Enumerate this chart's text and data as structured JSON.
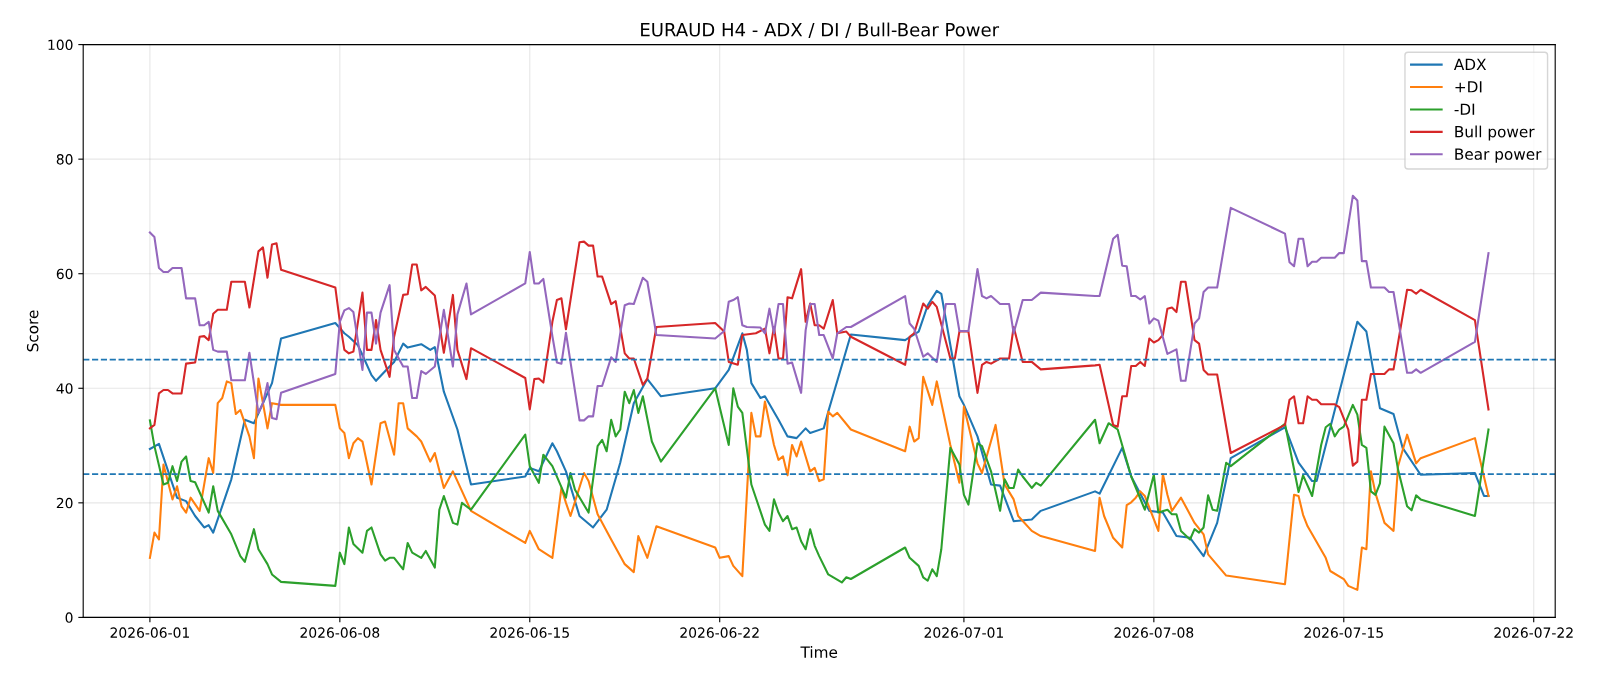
{
  "chart_data": {
    "type": "line",
    "title": "EURAUD H4 - ADX / DI / Bull-Bear Power",
    "xlabel": "Time",
    "ylabel": "Score",
    "xlim": [
      "2026-05-29T13:00",
      "2026-07-22T19:00"
    ],
    "xticks": [
      "2026-06-01",
      "2026-06-08",
      "2026-06-15",
      "2026-06-22",
      "2026-07-01",
      "2026-07-08",
      "2026-07-15",
      "2026-07-22"
    ],
    "ylim": [
      0,
      100
    ],
    "yticks": [
      0,
      20,
      40,
      60,
      80,
      100
    ],
    "grid": true,
    "legend": "top right",
    "line_style": "solid",
    "ref_lines": [
      {
        "axis": "y",
        "value": 45,
        "color": "#1f77b4",
        "line_style": "dashed"
      },
      {
        "axis": "y",
        "value": 25,
        "color": "#1f77b4",
        "line_style": "dashed"
      }
    ],
    "series": [
      {
        "name": "ADX",
        "color": "#1f77b4",
        "x": [
          "2026-06-01T00:00",
          "2026-06-01T08:00",
          "2026-06-02T00:00",
          "2026-06-02T08:00",
          "2026-06-02T16:00",
          "2026-06-03T00:00",
          "2026-06-03T04:00",
          "2026-06-03T08:00",
          "2026-06-04T00:00",
          "2026-06-04T12:00",
          "2026-06-04T20:00",
          "2026-06-05T12:00",
          "2026-06-05T20:00",
          "2026-06-07T20:00",
          "2026-06-08T04:00",
          "2026-06-08T08:00",
          "2026-06-08T16:00",
          "2026-06-08T20:00",
          "2026-06-09T04:00",
          "2026-06-09T08:00",
          "2026-06-09T20:00",
          "2026-06-10T00:00",
          "2026-06-10T08:00",
          "2026-06-10T12:00",
          "2026-06-11T00:00",
          "2026-06-11T08:00",
          "2026-06-11T12:00",
          "2026-06-11T20:00",
          "2026-06-12T08:00",
          "2026-06-12T20:00",
          "2026-06-14T20:00",
          "2026-06-15T00:00",
          "2026-06-15T08:00",
          "2026-06-15T20:00",
          "2026-06-16T00:00",
          "2026-06-16T08:00",
          "2026-06-16T20:00",
          "2026-06-17T08:00",
          "2026-06-17T20:00",
          "2026-06-18T08:00",
          "2026-06-18T20:00",
          "2026-06-19T08:00",
          "2026-06-19T20:00",
          "2026-06-21T20:00",
          "2026-06-22T08:00",
          "2026-06-22T20:00",
          "2026-06-23T00:00",
          "2026-06-23T04:00",
          "2026-06-23T12:00",
          "2026-06-23T16:00",
          "2026-06-24T04:00",
          "2026-06-24T12:00",
          "2026-06-24T20:00",
          "2026-06-25T04:00",
          "2026-06-25T08:00",
          "2026-06-25T20:00",
          "2026-06-26T00:00",
          "2026-06-26T20:00",
          "2026-06-28T20:00",
          "2026-06-29T08:00",
          "2026-06-29T16:00",
          "2026-06-30T00:00",
          "2026-06-30T04:00",
          "2026-06-30T20:00",
          "2026-07-01T00:00",
          "2026-07-01T12:00",
          "2026-07-02T00:00",
          "2026-07-02T08:00",
          "2026-07-02T20:00",
          "2026-07-03T12:00",
          "2026-07-03T20:00",
          "2026-07-05T20:00",
          "2026-07-06T00:00",
          "2026-07-06T20:00",
          "2026-07-07T04:00",
          "2026-07-07T20:00",
          "2026-07-08T08:00",
          "2026-07-08T20:00",
          "2026-07-09T08:00",
          "2026-07-09T20:00",
          "2026-07-10T08:00",
          "2026-07-10T20:00",
          "2026-07-12T20:00",
          "2026-07-13T08:00",
          "2026-07-13T20:00",
          "2026-07-14T00:00",
          "2026-07-15T12:00",
          "2026-07-15T20:00",
          "2026-07-16T08:00",
          "2026-07-16T20:00",
          "2026-07-17T04:00",
          "2026-07-17T20:00",
          "2026-07-19T20:00",
          "2026-07-20T04:00",
          "2026-07-20T08:00"
        ],
        "values": [
          29.4,
          30.3,
          20.9,
          20.3,
          17.7,
          15.7,
          16.1,
          14.8,
          24.1,
          34.5,
          33.9,
          40.9,
          48.7,
          51.4,
          49.6,
          49.0,
          47.5,
          45.8,
          42.3,
          41.3,
          43.8,
          44.6,
          47.8,
          47.1,
          47.7,
          46.7,
          47.2,
          39.4,
          32.8,
          23.2,
          24.6,
          26.1,
          25.5,
          30.4,
          29.0,
          25.5,
          17.7,
          15.7,
          18.8,
          27.0,
          37.4,
          41.6,
          38.6,
          40.0,
          43.2,
          49.6,
          46.7,
          40.9,
          38.3,
          38.6,
          34.5,
          31.6,
          31.3,
          33.0,
          32.2,
          33.0,
          35.9,
          49.4,
          48.4,
          49.9,
          54.5,
          57.0,
          56.5,
          38.6,
          37.1,
          31.6,
          23.2,
          23.0,
          16.8,
          17.1,
          18.6,
          22.0,
          21.6,
          29.6,
          24.6,
          18.6,
          18.3,
          14.2,
          13.9,
          10.7,
          16.5,
          27.8,
          33.2,
          27.0,
          23.8,
          23.8,
          51.6,
          49.9,
          36.5,
          35.5,
          29.6,
          24.9,
          25.2,
          21.2,
          21.2
        ]
      },
      {
        "name": "+DI",
        "color": "#ff7f0e",
        "x": [
          "2026-06-01T00:00",
          "2026-06-01T04:00",
          "2026-06-01T08:00",
          "2026-06-01T12:00",
          "2026-06-01T20:00",
          "2026-06-02T00:00",
          "2026-06-02T04:00",
          "2026-06-02T08:00",
          "2026-06-02T12:00",
          "2026-06-02T20:00",
          "2026-06-03T04:00",
          "2026-06-03T08:00",
          "2026-06-03T12:00",
          "2026-06-03T16:00",
          "2026-06-03T20:00",
          "2026-06-04T00:00",
          "2026-06-04T04:00",
          "2026-06-04T08:00",
          "2026-06-04T16:00",
          "2026-06-04T20:00",
          "2026-06-05T00:00",
          "2026-06-05T04:00",
          "2026-06-05T08:00",
          "2026-06-05T12:00",
          "2026-06-05T20:00",
          "2026-06-07T20:00",
          "2026-06-08T00:00",
          "2026-06-08T04:00",
          "2026-06-08T08:00",
          "2026-06-08T12:00",
          "2026-06-08T16:00",
          "2026-06-08T20:00",
          "2026-06-09T04:00",
          "2026-06-09T12:00",
          "2026-06-09T16:00",
          "2026-06-10T00:00",
          "2026-06-10T04:00",
          "2026-06-10T08:00",
          "2026-06-10T12:00",
          "2026-06-10T20:00",
          "2026-06-11T00:00",
          "2026-06-11T08:00",
          "2026-06-11T12:00",
          "2026-06-11T20:00",
          "2026-06-12T04:00",
          "2026-06-12T08:00",
          "2026-06-12T20:00",
          "2026-06-14T20:00",
          "2026-06-15T00:00",
          "2026-06-15T08:00",
          "2026-06-15T20:00",
          "2026-06-16T04:00",
          "2026-06-16T08:00",
          "2026-06-16T12:00",
          "2026-06-17T00:00",
          "2026-06-17T04:00",
          "2026-06-17T12:00",
          "2026-06-18T00:00",
          "2026-06-18T12:00",
          "2026-06-18T20:00",
          "2026-06-19T00:00",
          "2026-06-19T08:00",
          "2026-06-19T16:00",
          "2026-06-21T20:00",
          "2026-06-22T00:00",
          "2026-06-22T08:00",
          "2026-06-22T12:00",
          "2026-06-22T20:00",
          "2026-06-23T04:00",
          "2026-06-23T08:00",
          "2026-06-23T12:00",
          "2026-06-23T16:00",
          "2026-06-24T00:00",
          "2026-06-24T04:00",
          "2026-06-24T08:00",
          "2026-06-24T12:00",
          "2026-06-24T16:00",
          "2026-06-24T20:00",
          "2026-06-25T00:00",
          "2026-06-25T08:00",
          "2026-06-25T12:00",
          "2026-06-25T16:00",
          "2026-06-25T20:00",
          "2026-06-26T00:00",
          "2026-06-26T04:00",
          "2026-06-26T08:00",
          "2026-06-26T20:00",
          "2026-06-28T20:00",
          "2026-06-29T00:00",
          "2026-06-29T04:00",
          "2026-06-29T08:00",
          "2026-06-29T12:00",
          "2026-06-29T20:00",
          "2026-06-30T00:00",
          "2026-06-30T12:00",
          "2026-06-30T20:00",
          "2026-07-01T00:00",
          "2026-07-01T12:00",
          "2026-07-01T16:00",
          "2026-07-02T04:00",
          "2026-07-02T12:00",
          "2026-07-02T20:00",
          "2026-07-03T00:00",
          "2026-07-03T12:00",
          "2026-07-03T20:00",
          "2026-07-05T20:00",
          "2026-07-06T00:00",
          "2026-07-06T04:00",
          "2026-07-06T12:00",
          "2026-07-06T20:00",
          "2026-07-07T00:00",
          "2026-07-07T04:00",
          "2026-07-07T08:00",
          "2026-07-07T12:00",
          "2026-07-07T16:00",
          "2026-07-08T04:00",
          "2026-07-08T08:00",
          "2026-07-08T12:00",
          "2026-07-08T16:00",
          "2026-07-09T00:00",
          "2026-07-09T12:00",
          "2026-07-09T20:00",
          "2026-07-10T00:00",
          "2026-07-10T16:00",
          "2026-07-12T20:00",
          "2026-07-13T04:00",
          "2026-07-13T08:00",
          "2026-07-13T12:00",
          "2026-07-13T16:00",
          "2026-07-14T08:00",
          "2026-07-14T12:00",
          "2026-07-15T00:00",
          "2026-07-15T04:00",
          "2026-07-15T12:00",
          "2026-07-15T16:00",
          "2026-07-15T20:00",
          "2026-07-16T00:00",
          "2026-07-16T04:00",
          "2026-07-16T12:00",
          "2026-07-16T20:00",
          "2026-07-17T00:00",
          "2026-07-17T08:00",
          "2026-07-17T16:00",
          "2026-07-17T20:00",
          "2026-07-19T20:00",
          "2026-07-20T08:00"
        ],
        "values": [
          10.4,
          14.8,
          13.6,
          26.7,
          20.6,
          22.9,
          19.4,
          18.3,
          20.9,
          18.6,
          27.8,
          25.2,
          37.4,
          38.3,
          41.2,
          40.9,
          35.5,
          36.2,
          31.6,
          27.8,
          41.7,
          37.4,
          33.0,
          37.4,
          37.1,
          37.1,
          33.0,
          32.2,
          27.8,
          30.4,
          31.3,
          30.7,
          23.2,
          33.9,
          34.2,
          28.4,
          37.4,
          37.4,
          33.0,
          31.6,
          30.7,
          27.2,
          28.7,
          22.6,
          25.5,
          23.8,
          18.6,
          13.0,
          15.1,
          11.9,
          10.4,
          22.6,
          20.0,
          17.7,
          25.2,
          23.8,
          18.0,
          13.6,
          9.3,
          7.9,
          14.2,
          10.4,
          15.9,
          12.2,
          10.4,
          10.7,
          9.0,
          7.2,
          35.7,
          31.6,
          31.6,
          37.7,
          30.1,
          27.5,
          28.1,
          24.8,
          30.1,
          28.1,
          30.7,
          25.5,
          26.1,
          23.8,
          24.1,
          35.9,
          35.1,
          35.7,
          32.8,
          29.0,
          33.3,
          30.7,
          31.3,
          42.0,
          37.1,
          41.2,
          30.1,
          23.5,
          36.8,
          26.9,
          25.2,
          33.6,
          23.2,
          20.6,
          17.7,
          15.1,
          14.2,
          11.6,
          20.9,
          17.7,
          13.9,
          12.2,
          19.6,
          20.1,
          20.9,
          22.0,
          21.2,
          15.1,
          25.0,
          21.4,
          18.6,
          20.9,
          16.5,
          14.5,
          11.0,
          7.3,
          5.8,
          21.4,
          21.2,
          17.9,
          15.9,
          10.4,
          8.1,
          6.7,
          5.5,
          4.8,
          12.2,
          11.9,
          25.5,
          21.7,
          16.5,
          15.1,
          26.4,
          31.9,
          26.9,
          27.8,
          31.3,
          21.2
        ]
      },
      {
        "name": "-DI",
        "color": "#2ca02c",
        "x": [
          "2026-06-01T00:00",
          "2026-06-01T04:00",
          "2026-06-01T12:00",
          "2026-06-01T16:00",
          "2026-06-01T20:00",
          "2026-06-02T00:00",
          "2026-06-02T04:00",
          "2026-06-02T08:00",
          "2026-06-02T12:00",
          "2026-06-02T16:00",
          "2026-06-03T04:00",
          "2026-06-03T08:00",
          "2026-06-03T12:00",
          "2026-06-04T00:00",
          "2026-06-04T08:00",
          "2026-06-04T12:00",
          "2026-06-04T20:00",
          "2026-06-05T00:00",
          "2026-06-05T08:00",
          "2026-06-05T12:00",
          "2026-06-05T20:00",
          "2026-06-07T20:00",
          "2026-06-08T00:00",
          "2026-06-08T04:00",
          "2026-06-08T08:00",
          "2026-06-08T12:00",
          "2026-06-08T20:00",
          "2026-06-09T00:00",
          "2026-06-09T04:00",
          "2026-06-09T12:00",
          "2026-06-09T16:00",
          "2026-06-09T20:00",
          "2026-06-10T00:00",
          "2026-06-10T08:00",
          "2026-06-10T12:00",
          "2026-06-10T16:00",
          "2026-06-11T00:00",
          "2026-06-11T04:00",
          "2026-06-11T12:00",
          "2026-06-11T16:00",
          "2026-06-11T20:00",
          "2026-06-12T04:00",
          "2026-06-12T08:00",
          "2026-06-12T12:00",
          "2026-06-12T20:00",
          "2026-06-14T20:00",
          "2026-06-15T00:00",
          "2026-06-15T08:00",
          "2026-06-15T12:00",
          "2026-06-15T20:00",
          "2026-06-16T08:00",
          "2026-06-16T12:00",
          "2026-06-16T16:00",
          "2026-06-17T04:00",
          "2026-06-17T12:00",
          "2026-06-17T16:00",
          "2026-06-17T20:00",
          "2026-06-18T00:00",
          "2026-06-18T04:00",
          "2026-06-18T08:00",
          "2026-06-18T12:00",
          "2026-06-18T16:00",
          "2026-06-18T20:00",
          "2026-06-19T00:00",
          "2026-06-19T04:00",
          "2026-06-19T12:00",
          "2026-06-19T20:00",
          "2026-06-21T20:00",
          "2026-06-22T08:00",
          "2026-06-22T12:00",
          "2026-06-22T16:00",
          "2026-06-22T20:00",
          "2026-06-23T04:00",
          "2026-06-23T16:00",
          "2026-06-23T20:00",
          "2026-06-24T00:00",
          "2026-06-24T04:00",
          "2026-06-24T08:00",
          "2026-06-24T12:00",
          "2026-06-24T16:00",
          "2026-06-24T20:00",
          "2026-06-25T00:00",
          "2026-06-25T04:00",
          "2026-06-25T08:00",
          "2026-06-25T12:00",
          "2026-06-25T16:00",
          "2026-06-26T00:00",
          "2026-06-26T12:00",
          "2026-06-26T16:00",
          "2026-06-26T20:00",
          "2026-06-28T20:00",
          "2026-06-29T00:00",
          "2026-06-29T08:00",
          "2026-06-29T12:00",
          "2026-06-29T16:00",
          "2026-06-29T20:00",
          "2026-06-30T00:00",
          "2026-06-30T04:00",
          "2026-06-30T12:00",
          "2026-06-30T20:00",
          "2026-07-01T00:00",
          "2026-07-01T04:00",
          "2026-07-01T12:00",
          "2026-07-01T16:00",
          "2026-07-02T00:00",
          "2026-07-02T08:00",
          "2026-07-02T12:00",
          "2026-07-02T16:00",
          "2026-07-02T20:00",
          "2026-07-03T00:00",
          "2026-07-03T04:00",
          "2026-07-03T12:00",
          "2026-07-03T16:00",
          "2026-07-03T20:00",
          "2026-07-05T20:00",
          "2026-07-06T00:00",
          "2026-07-06T08:00",
          "2026-07-06T16:00",
          "2026-07-07T04:00",
          "2026-07-07T16:00",
          "2026-07-08T00:00",
          "2026-07-08T04:00",
          "2026-07-08T12:00",
          "2026-07-08T16:00",
          "2026-07-08T20:00",
          "2026-07-09T00:00",
          "2026-07-09T08:00",
          "2026-07-09T12:00",
          "2026-07-09T16:00",
          "2026-07-09T20:00",
          "2026-07-10T00:00",
          "2026-07-10T04:00",
          "2026-07-10T08:00",
          "2026-07-10T16:00",
          "2026-07-10T20:00",
          "2026-07-12T20:00",
          "2026-07-13T08:00",
          "2026-07-13T12:00",
          "2026-07-13T20:00",
          "2026-07-14T04:00",
          "2026-07-14T08:00",
          "2026-07-14T12:00",
          "2026-07-14T16:00",
          "2026-07-14T20:00",
          "2026-07-15T00:00",
          "2026-07-15T08:00",
          "2026-07-15T12:00",
          "2026-07-15T16:00",
          "2026-07-15T20:00",
          "2026-07-16T00:00",
          "2026-07-16T04:00",
          "2026-07-16T08:00",
          "2026-07-16T12:00",
          "2026-07-16T20:00",
          "2026-07-17T00:00",
          "2026-07-17T08:00",
          "2026-07-17T12:00",
          "2026-07-17T16:00",
          "2026-07-17T20:00",
          "2026-07-19T20:00",
          "2026-07-20T08:00"
        ],
        "values": [
          34.4,
          29.9,
          23.2,
          23.5,
          26.4,
          23.8,
          27.2,
          28.1,
          23.8,
          23.6,
          18.3,
          22.9,
          18.6,
          14.5,
          10.7,
          9.7,
          15.4,
          11.9,
          9.3,
          7.5,
          6.2,
          5.5,
          11.3,
          9.3,
          15.7,
          12.8,
          11.3,
          15.1,
          15.7,
          11.0,
          9.9,
          10.4,
          10.4,
          8.4,
          13.0,
          11.3,
          10.4,
          11.6,
          8.7,
          18.8,
          21.2,
          16.5,
          16.2,
          20.0,
          18.8,
          31.9,
          26.4,
          23.5,
          28.4,
          26.4,
          20.9,
          25.2,
          22.3,
          18.3,
          29.9,
          31.0,
          29.0,
          34.5,
          31.6,
          32.8,
          39.4,
          37.4,
          39.7,
          35.7,
          38.6,
          30.7,
          27.2,
          40.0,
          30.1,
          40.0,
          36.8,
          35.7,
          23.2,
          16.2,
          15.1,
          20.6,
          18.3,
          16.8,
          17.7,
          15.4,
          15.7,
          13.3,
          11.9,
          15.4,
          12.5,
          10.7,
          7.5,
          6.1,
          7.0,
          6.7,
          12.2,
          10.4,
          9.0,
          7.0,
          6.4,
          8.4,
          7.2,
          11.9,
          29.6,
          26.7,
          21.4,
          19.7,
          30.4,
          29.9,
          25.5,
          18.6,
          24.1,
          22.6,
          22.6,
          25.8,
          24.6,
          22.6,
          23.5,
          23.0,
          34.5,
          30.4,
          33.9,
          32.8,
          24.6,
          18.8,
          24.9,
          18.3,
          18.8,
          18.0,
          18.0,
          15.1,
          13.6,
          15.4,
          14.8,
          15.7,
          21.3,
          18.8,
          18.6,
          27.0,
          26.4,
          33.8,
          21.9,
          24.8,
          21.2,
          30.1,
          33.2,
          33.8,
          31.6,
          32.8,
          33.3,
          37.1,
          35.4,
          30.1,
          29.6,
          22.0,
          21.4,
          23.4,
          33.3,
          30.4,
          25.8,
          19.4,
          18.7,
          21.3,
          20.6,
          17.7,
          32.8
        ]
      },
      {
        "name": "Bull power",
        "color": "#d62728",
        "x": [
          "2026-06-01T00:00",
          "2026-06-01T04:00",
          "2026-06-01T08:00",
          "2026-06-01T12:00",
          "2026-06-01T16:00",
          "2026-06-01T20:00",
          "2026-06-02T04:00",
          "2026-06-02T08:00",
          "2026-06-02T16:00",
          "2026-06-02T20:00",
          "2026-06-03T00:00",
          "2026-06-03T04:00",
          "2026-06-03T08:00",
          "2026-06-03T12:00",
          "2026-06-03T20:00",
          "2026-06-04T00:00",
          "2026-06-04T12:00",
          "2026-06-04T16:00",
          "2026-06-05T00:00",
          "2026-06-05T04:00",
          "2026-06-05T08:00",
          "2026-06-05T12:00",
          "2026-06-05T16:00",
          "2026-06-05T20:00",
          "2026-06-07T20:00",
          "2026-06-08T00:00",
          "2026-06-08T04:00",
          "2026-06-08T08:00",
          "2026-06-08T12:00",
          "2026-06-08T20:00",
          "2026-06-09T00:00",
          "2026-06-09T04:00",
          "2026-06-09T08:00",
          "2026-06-09T12:00",
          "2026-06-09T20:00",
          "2026-06-10T00:00",
          "2026-06-10T08:00",
          "2026-06-10T12:00",
          "2026-06-10T16:00",
          "2026-06-10T20:00",
          "2026-06-11T00:00",
          "2026-06-11T04:00",
          "2026-06-11T12:00",
          "2026-06-11T20:00",
          "2026-06-12T04:00",
          "2026-06-12T08:00",
          "2026-06-12T16:00",
          "2026-06-12T20:00",
          "2026-06-14T20:00",
          "2026-06-15T00:00",
          "2026-06-15T04:00",
          "2026-06-15T08:00",
          "2026-06-15T12:00",
          "2026-06-15T20:00",
          "2026-06-16T00:00",
          "2026-06-16T04:00",
          "2026-06-16T08:00",
          "2026-06-16T20:00",
          "2026-06-17T00:00",
          "2026-06-17T04:00",
          "2026-06-17T08:00",
          "2026-06-17T12:00",
          "2026-06-17T16:00",
          "2026-06-18T00:00",
          "2026-06-18T04:00",
          "2026-06-18T12:00",
          "2026-06-18T16:00",
          "2026-06-18T20:00",
          "2026-06-19T04:00",
          "2026-06-19T08:00",
          "2026-06-19T16:00",
          "2026-06-21T20:00",
          "2026-06-22T04:00",
          "2026-06-22T08:00",
          "2026-06-22T16:00",
          "2026-06-22T20:00",
          "2026-06-23T08:00",
          "2026-06-23T16:00",
          "2026-06-23T20:00",
          "2026-06-24T00:00",
          "2026-06-24T04:00",
          "2026-06-24T08:00",
          "2026-06-24T12:00",
          "2026-06-24T16:00",
          "2026-06-25T00:00",
          "2026-06-25T04:00",
          "2026-06-25T08:00",
          "2026-06-25T12:00",
          "2026-06-25T16:00",
          "2026-06-25T20:00",
          "2026-06-26T04:00",
          "2026-06-26T08:00",
          "2026-06-26T16:00",
          "2026-06-26T20:00",
          "2026-06-28T20:00",
          "2026-06-29T00:00",
          "2026-06-29T04:00",
          "2026-06-29T12:00",
          "2026-06-29T16:00",
          "2026-06-29T20:00",
          "2026-06-30T00:00",
          "2026-06-30T12:00",
          "2026-06-30T16:00",
          "2026-06-30T20:00",
          "2026-07-01T04:00",
          "2026-07-01T12:00",
          "2026-07-01T16:00",
          "2026-07-01T20:00",
          "2026-07-02T00:00",
          "2026-07-02T08:00",
          "2026-07-02T16:00",
          "2026-07-02T20:00",
          "2026-07-03T04:00",
          "2026-07-03T12:00",
          "2026-07-03T20:00",
          "2026-07-05T20:00",
          "2026-07-06T00:00",
          "2026-07-06T12:00",
          "2026-07-06T16:00",
          "2026-07-06T20:00",
          "2026-07-07T00:00",
          "2026-07-07T04:00",
          "2026-07-07T08:00",
          "2026-07-07T12:00",
          "2026-07-07T16:00",
          "2026-07-07T20:00",
          "2026-07-08T00:00",
          "2026-07-08T04:00",
          "2026-07-08T08:00",
          "2026-07-08T12:00",
          "2026-07-08T16:00",
          "2026-07-08T20:00",
          "2026-07-09T00:00",
          "2026-07-09T04:00",
          "2026-07-09T12:00",
          "2026-07-09T16:00",
          "2026-07-09T20:00",
          "2026-07-10T00:00",
          "2026-07-10T08:00",
          "2026-07-10T20:00",
          "2026-07-12T20:00",
          "2026-07-13T00:00",
          "2026-07-13T04:00",
          "2026-07-13T08:00",
          "2026-07-13T12:00",
          "2026-07-13T16:00",
          "2026-07-13T20:00",
          "2026-07-14T00:00",
          "2026-07-14T04:00",
          "2026-07-14T16:00",
          "2026-07-14T20:00",
          "2026-07-15T04:00",
          "2026-07-15T08:00",
          "2026-07-15T12:00",
          "2026-07-15T16:00",
          "2026-07-15T20:00",
          "2026-07-16T00:00",
          "2026-07-16T12:00",
          "2026-07-16T16:00",
          "2026-07-16T20:00",
          "2026-07-17T08:00",
          "2026-07-17T12:00",
          "2026-07-17T16:00",
          "2026-07-17T20:00",
          "2026-07-19T20:00",
          "2026-07-20T08:00"
        ],
        "values": [
          33.0,
          33.6,
          39.1,
          39.7,
          39.7,
          39.1,
          39.1,
          44.3,
          44.5,
          49.0,
          49.1,
          48.4,
          53.0,
          53.7,
          53.7,
          58.6,
          58.6,
          54.1,
          63.9,
          64.6,
          59.3,
          65.1,
          65.3,
          60.7,
          57.6,
          51.6,
          46.7,
          46.1,
          46.4,
          56.7,
          46.7,
          46.7,
          51.9,
          46.7,
          42.0,
          49.0,
          56.3,
          56.4,
          61.6,
          61.6,
          57.1,
          57.7,
          56.2,
          46.2,
          56.3,
          46.7,
          41.6,
          47.0,
          41.8,
          36.3,
          41.6,
          41.7,
          41.0,
          51.6,
          55.4,
          55.7,
          50.3,
          65.5,
          65.6,
          64.9,
          64.9,
          59.5,
          59.5,
          54.7,
          55.2,
          46.1,
          45.2,
          45.2,
          40.6,
          41.7,
          50.7,
          51.4,
          49.9,
          44.6,
          44.1,
          49.3,
          49.6,
          50.4,
          46.1,
          50.7,
          45.2,
          45.2,
          55.9,
          55.7,
          60.8,
          51.6,
          54.8,
          51.0,
          51.0,
          50.4,
          55.4,
          49.6,
          49.9,
          49.0,
          44.1,
          49.0,
          49.6,
          54.8,
          53.9,
          55.1,
          54.2,
          45.2,
          45.2,
          49.9,
          49.9,
          39.2,
          44.1,
          44.6,
          44.3,
          45.2,
          45.2,
          50.7,
          44.6,
          44.6,
          43.3,
          44.0,
          44.1,
          33.6,
          33.3,
          38.6,
          38.6,
          43.9,
          43.9,
          44.6,
          43.9,
          48.7,
          48.0,
          48.4,
          49.3,
          53.9,
          54.1,
          53.3,
          58.6,
          58.6,
          48.4,
          47.8,
          43.2,
          42.4,
          42.4,
          28.7,
          33.6,
          38.0,
          38.6,
          33.9,
          33.9,
          38.6,
          38.0,
          38.0,
          37.2,
          37.2,
          36.7,
          32.8,
          26.5,
          27.2,
          38.0,
          38.0,
          42.5,
          42.5,
          43.3,
          43.3,
          57.2,
          57.1,
          56.5,
          57.2,
          51.9,
          36.3
        ]
      },
      {
        "name": "Bear power",
        "color": "#9467bd",
        "x": [
          "2026-06-01T00:00",
          "2026-06-01T04:00",
          "2026-06-01T08:00",
          "2026-06-01T12:00",
          "2026-06-01T16:00",
          "2026-06-01T20:00",
          "2026-06-02T04:00",
          "2026-06-02T08:00",
          "2026-06-02T16:00",
          "2026-06-02T20:00",
          "2026-06-03T00:00",
          "2026-06-03T04:00",
          "2026-06-03T08:00",
          "2026-06-03T12:00",
          "2026-06-03T20:00",
          "2026-06-04T00:00",
          "2026-06-04T12:00",
          "2026-06-04T16:00",
          "2026-06-05T00:00",
          "2026-06-05T04:00",
          "2026-06-05T08:00",
          "2026-06-05T12:00",
          "2026-06-05T16:00",
          "2026-06-05T20:00",
          "2026-06-07T20:00",
          "2026-06-08T00:00",
          "2026-06-08T04:00",
          "2026-06-08T08:00",
          "2026-06-08T12:00",
          "2026-06-08T20:00",
          "2026-06-09T00:00",
          "2026-06-09T04:00",
          "2026-06-09T08:00",
          "2026-06-09T12:00",
          "2026-06-09T20:00",
          "2026-06-10T00:00",
          "2026-06-10T08:00",
          "2026-06-10T12:00",
          "2026-06-10T16:00",
          "2026-06-10T20:00",
          "2026-06-11T00:00",
          "2026-06-11T04:00",
          "2026-06-11T12:00",
          "2026-06-11T20:00",
          "2026-06-12T04:00",
          "2026-06-12T08:00",
          "2026-06-12T16:00",
          "2026-06-12T20:00",
          "2026-06-14T20:00",
          "2026-06-15T00:00",
          "2026-06-15T04:00",
          "2026-06-15T08:00",
          "2026-06-15T12:00",
          "2026-06-15T20:00",
          "2026-06-16T00:00",
          "2026-06-16T04:00",
          "2026-06-16T08:00",
          "2026-06-16T20:00",
          "2026-06-17T00:00",
          "2026-06-17T04:00",
          "2026-06-17T08:00",
          "2026-06-17T12:00",
          "2026-06-17T16:00",
          "2026-06-18T00:00",
          "2026-06-18T04:00",
          "2026-06-18T12:00",
          "2026-06-18T16:00",
          "2026-06-18T20:00",
          "2026-06-19T04:00",
          "2026-06-19T08:00",
          "2026-06-19T16:00",
          "2026-06-21T20:00",
          "2026-06-22T04:00",
          "2026-06-22T08:00",
          "2026-06-22T12:00",
          "2026-06-22T16:00",
          "2026-06-22T20:00",
          "2026-06-23T00:00",
          "2026-06-23T12:00",
          "2026-06-23T16:00",
          "2026-06-23T20:00",
          "2026-06-24T00:00",
          "2026-06-24T04:00",
          "2026-06-24T08:00",
          "2026-06-24T12:00",
          "2026-06-24T16:00",
          "2026-06-25T00:00",
          "2026-06-25T04:00",
          "2026-06-25T08:00",
          "2026-06-25T12:00",
          "2026-06-25T16:00",
          "2026-06-25T20:00",
          "2026-06-26T04:00",
          "2026-06-26T08:00",
          "2026-06-26T16:00",
          "2026-06-26T20:00",
          "2026-06-28T20:00",
          "2026-06-29T00:00",
          "2026-06-29T04:00",
          "2026-06-29T12:00",
          "2026-06-29T16:00",
          "2026-06-30T00:00",
          "2026-06-30T08:00",
          "2026-06-30T16:00",
          "2026-06-30T20:00",
          "2026-07-01T04:00",
          "2026-07-01T12:00",
          "2026-07-01T16:00",
          "2026-07-01T20:00",
          "2026-07-02T00:00",
          "2026-07-02T08:00",
          "2026-07-02T16:00",
          "2026-07-02T20:00",
          "2026-07-03T04:00",
          "2026-07-03T12:00",
          "2026-07-03T20:00",
          "2026-07-05T20:00",
          "2026-07-06T00:00",
          "2026-07-06T12:00",
          "2026-07-06T16:00",
          "2026-07-06T20:00",
          "2026-07-07T00:00",
          "2026-07-07T04:00",
          "2026-07-07T08:00",
          "2026-07-07T12:00",
          "2026-07-07T16:00",
          "2026-07-07T20:00",
          "2026-07-08T00:00",
          "2026-07-08T04:00",
          "2026-07-08T12:00",
          "2026-07-08T20:00",
          "2026-07-09T00:00",
          "2026-07-09T04:00",
          "2026-07-09T12:00",
          "2026-07-09T16:00",
          "2026-07-09T20:00",
          "2026-07-10T00:00",
          "2026-07-10T08:00",
          "2026-07-10T20:00",
          "2026-07-12T20:00",
          "2026-07-13T00:00",
          "2026-07-13T04:00",
          "2026-07-13T08:00",
          "2026-07-13T12:00",
          "2026-07-13T16:00",
          "2026-07-13T20:00",
          "2026-07-14T00:00",
          "2026-07-14T04:00",
          "2026-07-14T16:00",
          "2026-07-14T20:00",
          "2026-07-15T00:00",
          "2026-07-15T08:00",
          "2026-07-15T12:00",
          "2026-07-15T16:00",
          "2026-07-15T20:00",
          "2026-07-16T00:00",
          "2026-07-16T12:00",
          "2026-07-16T16:00",
          "2026-07-16T20:00",
          "2026-07-17T08:00",
          "2026-07-17T12:00",
          "2026-07-17T16:00",
          "2026-07-17T20:00",
          "2026-07-19T20:00",
          "2026-07-20T08:00"
        ],
        "values": [
          67.2,
          66.4,
          61.0,
          60.3,
          60.3,
          61.0,
          61.0,
          55.7,
          55.7,
          51.0,
          51.0,
          51.6,
          46.7,
          46.4,
          46.4,
          41.4,
          41.4,
          46.2,
          35.7,
          37.4,
          40.9,
          34.8,
          34.6,
          39.2,
          42.5,
          51.6,
          53.6,
          54.0,
          53.3,
          43.2,
          53.2,
          53.2,
          47.8,
          53.2,
          58.0,
          46.7,
          43.8,
          43.8,
          38.3,
          38.3,
          43.0,
          42.5,
          43.8,
          53.7,
          43.8,
          52.9,
          58.3,
          52.9,
          58.3,
          63.8,
          58.3,
          58.3,
          59.1,
          49.1,
          44.5,
          44.3,
          49.7,
          34.4,
          34.4,
          35.1,
          35.1,
          40.4,
          40.4,
          45.4,
          44.6,
          54.5,
          54.8,
          54.7,
          59.3,
          58.6,
          49.3,
          48.7,
          50.0,
          55.1,
          55.4,
          55.9,
          51.0,
          50.7,
          50.6,
          49.6,
          53.9,
          49.6,
          54.7,
          54.7,
          44.3,
          44.5,
          39.2,
          50.1,
          54.7,
          54.7,
          49.3,
          49.3,
          45.2,
          49.6,
          50.7,
          50.7,
          56.1,
          51.3,
          50.4,
          45.5,
          46.1,
          44.6,
          54.7,
          54.7,
          50.0,
          50.0,
          60.8,
          56.1,
          55.7,
          56.1,
          54.7,
          54.7,
          49.6,
          55.4,
          55.4,
          56.7,
          56.1,
          56.1,
          66.1,
          66.8,
          61.4,
          61.3,
          56.1,
          56.1,
          55.5,
          56.1,
          51.3,
          52.2,
          51.8,
          46.0,
          46.8,
          41.3,
          41.3,
          51.3,
          52.2,
          56.8,
          57.6,
          57.6,
          71.5,
          67.0,
          62.0,
          61.3,
          66.1,
          66.1,
          61.3,
          62.1,
          62.1,
          62.8,
          62.8,
          63.6,
          63.6,
          73.6,
          72.8,
          62.2,
          62.2,
          57.6,
          57.6,
          56.8,
          56.8,
          42.7,
          42.7,
          43.3,
          42.7,
          48.1,
          63.6
        ]
      }
    ]
  }
}
